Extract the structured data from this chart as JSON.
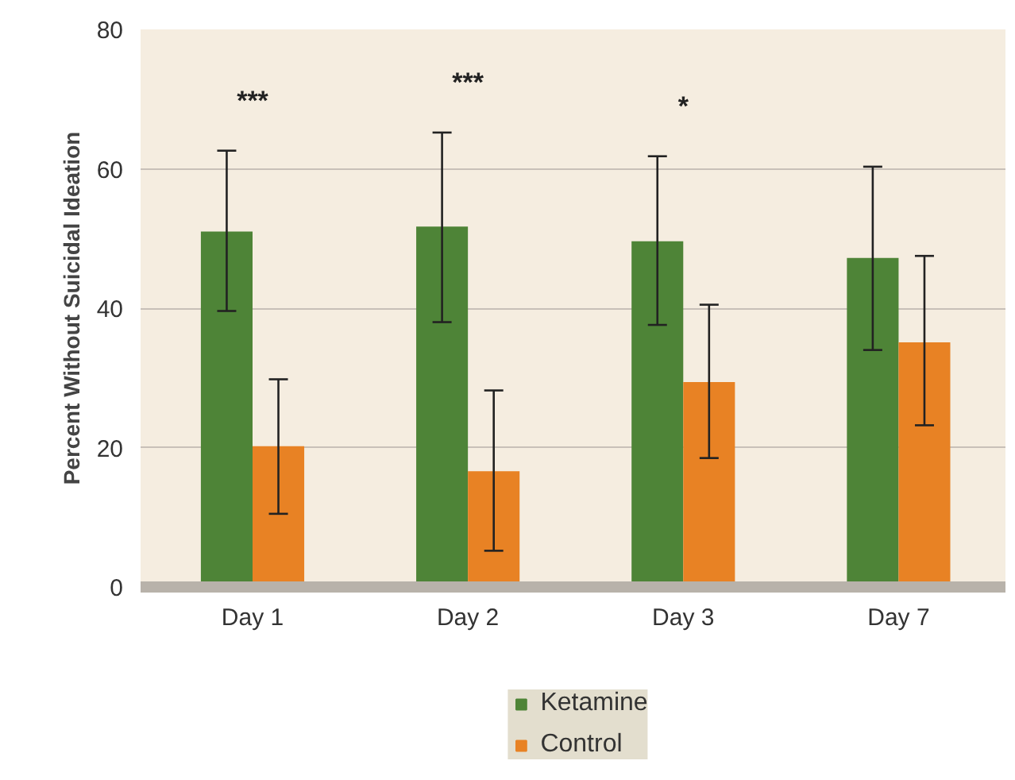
{
  "chart_data": {
    "type": "bar",
    "ylabel": "Percent Without Suicidal Ideation",
    "categories": [
      "Day 1",
      "Day 2",
      "Day 3",
      "Day 7"
    ],
    "series": [
      {
        "name": "Ketamine",
        "color": "#4e8437",
        "values": [
          51.0,
          51.7,
          49.6,
          47.2
        ],
        "errors": [
          [
            39.6,
            62.6
          ],
          [
            38.0,
            65.2
          ],
          [
            37.6,
            61.8
          ],
          [
            34.0,
            60.3
          ]
        ]
      },
      {
        "name": "Control",
        "color": "#e88224",
        "values": [
          20.2,
          16.6,
          29.4,
          35.1
        ],
        "errors": [
          [
            10.5,
            29.8
          ],
          [
            5.2,
            28.2
          ],
          [
            18.5,
            40.5
          ],
          [
            23.2,
            47.5
          ]
        ]
      }
    ],
    "ylim": [
      0,
      80
    ],
    "yticks": [
      0,
      20,
      40,
      60,
      80
    ],
    "grid": "y",
    "legend": "bottom",
    "annotations": [
      "***",
      "***",
      "*"
    ]
  }
}
